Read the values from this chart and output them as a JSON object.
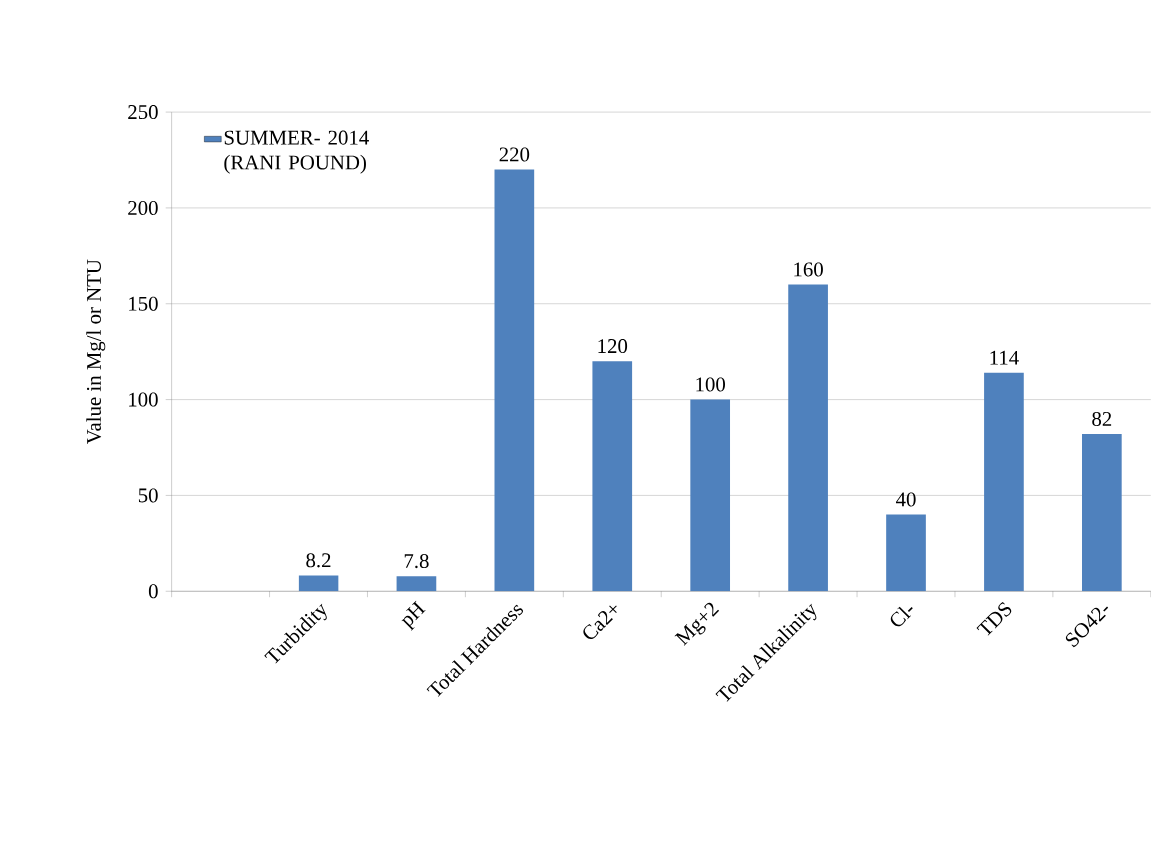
{
  "chart_data": {
    "type": "bar",
    "ylabel": "Value in Mg/l or NTU",
    "categories": [
      null,
      "Turbidity",
      "pH",
      "Total Hardness",
      "Ca2+",
      "Mg+2",
      "Total Alkalinity",
      "Cl-",
      "TDS",
      "SO42-"
    ],
    "series": [
      {
        "name": "SUMMER- 2014 (RANI POUND)",
        "color": "#4f81bd",
        "values": [
          null,
          8.2,
          7.8,
          220,
          120,
          100,
          160,
          40,
          114,
          82
        ]
      }
    ],
    "ylim": [
      0,
      250
    ],
    "yticks": [
      0,
      50,
      100,
      150,
      200,
      250
    ],
    "grid": "y",
    "legend": "top left",
    "data_labels": true
  }
}
